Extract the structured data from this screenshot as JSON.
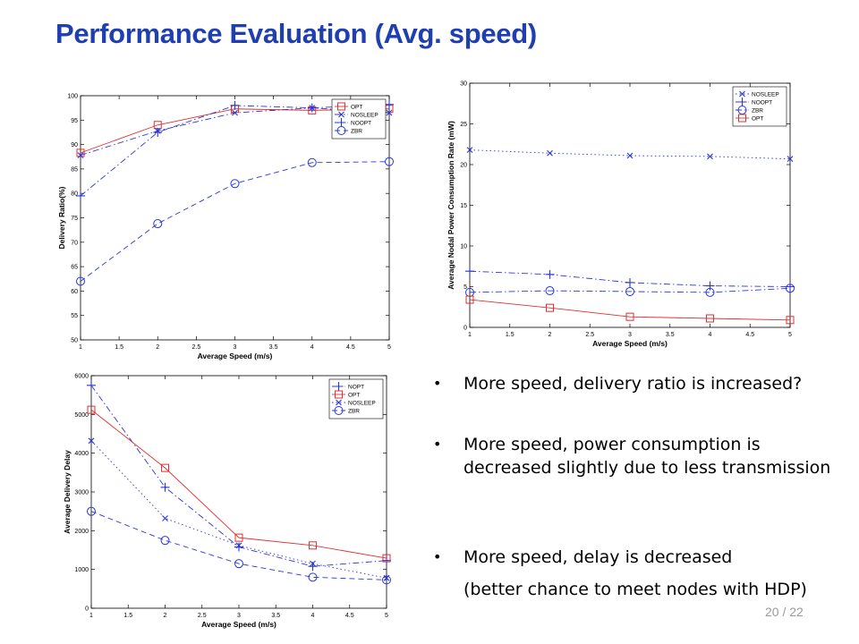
{
  "title": "Performance Evaluation (Avg. speed)",
  "page_number": "20 / 22",
  "bullets": [
    {
      "text": "More speed, delivery ratio is increased?"
    },
    {
      "text": "More speed, power consumption is decreased slightly due to less transmission"
    },
    {
      "text": "More speed, delay is decreased"
    },
    {
      "text": "(better chance to meet nodes with HDP)"
    }
  ],
  "colors": {
    "title": "#1f3fb0",
    "red": "#e03030",
    "blue": "#2a36d8",
    "dotted": "#8a8fe0"
  },
  "chart_data": [
    {
      "id": "delivery",
      "type": "line",
      "title": "",
      "xlabel": "Average Speed (m/s)",
      "ylabel": "Delivery Ratio(%)",
      "xlim": [
        1,
        5
      ],
      "ylim": [
        50,
        100
      ],
      "xticks": [
        1,
        1.5,
        2,
        2.5,
        3,
        3.5,
        4,
        4.5,
        5
      ],
      "yticks": [
        50,
        55,
        60,
        65,
        70,
        75,
        80,
        85,
        90,
        95,
        100
      ],
      "legend_position": "top-right",
      "x": [
        1,
        2,
        3,
        4,
        5
      ],
      "series": [
        {
          "name": "OPT",
          "values": [
            88.3,
            94,
            97.3,
            97,
            97.3
          ],
          "color": "#e03030",
          "marker": "square",
          "dash": "solid"
        },
        {
          "name": "NOSLEEP",
          "values": [
            87.8,
            92.8,
            96.5,
            97.5,
            96.5
          ],
          "color": "#2a36d8",
          "marker": "x",
          "dash": "dashdot"
        },
        {
          "name": "NOOPT",
          "values": [
            79.5,
            92.5,
            98,
            97.5,
            98.2
          ],
          "color": "#2a36d8",
          "marker": "plus",
          "dash": "dashdot"
        },
        {
          "name": "ZBR",
          "values": [
            62,
            73.8,
            82,
            86.3,
            86.5
          ],
          "color": "#2a36d8",
          "marker": "circle",
          "dash": "dashed"
        }
      ]
    },
    {
      "id": "power",
      "type": "line",
      "title": "",
      "xlabel": "Average Speed (m/s)",
      "ylabel": "Average Nodal Power Consumption Rate (mW)",
      "xlim": [
        1,
        5
      ],
      "ylim": [
        0,
        30
      ],
      "xticks": [
        1,
        1.5,
        2,
        2.5,
        3,
        3.5,
        4,
        4.5,
        5
      ],
      "yticks": [
        0,
        5,
        10,
        15,
        20,
        25,
        30
      ],
      "legend_position": "top-right",
      "x": [
        1,
        2,
        3,
        4,
        5
      ],
      "series": [
        {
          "name": "NOSLEEP",
          "values": [
            21.8,
            21.4,
            21.1,
            21,
            20.7
          ],
          "color": "#2a36d8",
          "marker": "x",
          "dash": "dotted"
        },
        {
          "name": "NOOPT",
          "values": [
            6.9,
            6.5,
            5.5,
            5.1,
            5
          ],
          "color": "#2a36d8",
          "marker": "plus",
          "dash": "dashdot"
        },
        {
          "name": "ZBR",
          "values": [
            4.3,
            4.5,
            4.4,
            4.3,
            4.8
          ],
          "color": "#2a36d8",
          "marker": "circle",
          "dash": "dashdot"
        },
        {
          "name": "OPT",
          "values": [
            3.4,
            2.4,
            1.3,
            1.1,
            0.9
          ],
          "color": "#e03030",
          "marker": "square",
          "dash": "solid"
        }
      ]
    },
    {
      "id": "delay",
      "type": "line",
      "title": "",
      "xlabel": "Average Speed (m/s)",
      "ylabel": "Average Delivery Delay",
      "xlim": [
        1,
        5
      ],
      "ylim": [
        0,
        6000
      ],
      "xticks": [
        1,
        1.5,
        2,
        2.5,
        3,
        3.5,
        4,
        4.5,
        5
      ],
      "yticks": [
        0,
        1000,
        2000,
        3000,
        4000,
        5000,
        6000
      ],
      "legend_position": "top-right",
      "x": [
        1,
        2,
        3,
        4,
        5
      ],
      "series": [
        {
          "name": "NOPT",
          "values": [
            5750,
            3120,
            1580,
            1080,
            1230
          ],
          "color": "#2a36d8",
          "marker": "plus",
          "dash": "dashdot"
        },
        {
          "name": "OPT",
          "values": [
            5120,
            3620,
            1820,
            1620,
            1290
          ],
          "color": "#e03030",
          "marker": "square",
          "dash": "solid"
        },
        {
          "name": "NOSLEEP",
          "values": [
            4320,
            2320,
            1620,
            1150,
            780
          ],
          "color": "#2a36d8",
          "marker": "x",
          "dash": "dotted"
        },
        {
          "name": "ZBR",
          "values": [
            2500,
            1750,
            1150,
            800,
            730
          ],
          "color": "#2a36d8",
          "marker": "circle",
          "dash": "dashed"
        }
      ]
    }
  ]
}
